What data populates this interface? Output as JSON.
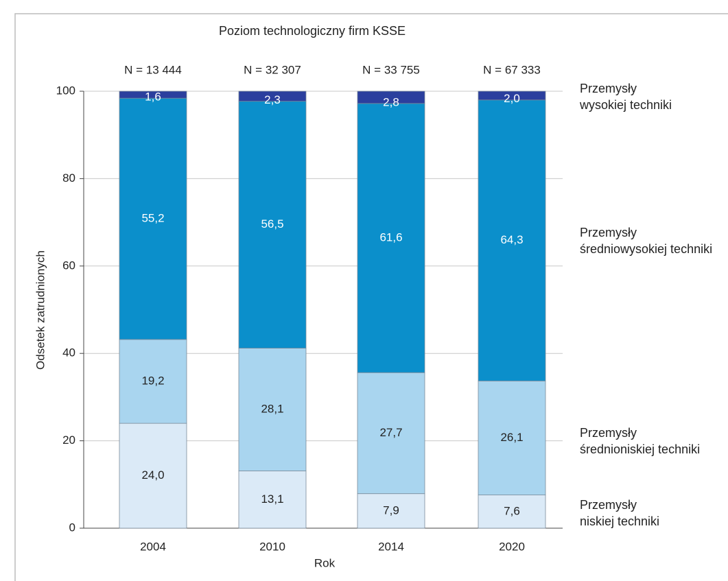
{
  "chart_data": {
    "type": "stacked_bar",
    "title": "Poziom technologiczny firm KSSE",
    "x_label": "Rok",
    "y_label": "Odsetek zatrudnionych",
    "categories": [
      "2004",
      "2010",
      "2014",
      "2020"
    ],
    "annotations": [
      "N = 13 444",
      "N = 32 307",
      "N = 33 755",
      "N = 67 333"
    ],
    "ylim": [
      0,
      100
    ],
    "yticks": [
      0,
      20,
      40,
      60,
      80,
      100
    ],
    "grid": true,
    "legend": "right",
    "series": [
      {
        "name": "Przemysły niskiej techniki",
        "color": "#dbeaf7",
        "label_color": "#222222",
        "values": [
          24.0,
          13.1,
          7.9,
          7.6
        ],
        "value_labels": [
          "24,0",
          "13,1",
          "7,9",
          "7,6"
        ]
      },
      {
        "name": "Przemysły średnioniskiej techniki",
        "color": "#a9d5ef",
        "label_color": "#222222",
        "values": [
          19.2,
          28.1,
          27.7,
          26.1
        ],
        "value_labels": [
          "19,2",
          "28,1",
          "27,7",
          "26,1"
        ]
      },
      {
        "name": "Przemysły średniowysokiej techniki",
        "color": "#0b8fcb",
        "label_color": "#ffffff",
        "values": [
          55.2,
          56.5,
          61.6,
          64.3
        ],
        "value_labels": [
          "55,2",
          "56,5",
          "61,6",
          "64,3"
        ]
      },
      {
        "name": "Przemysły wysokiej techniki",
        "color": "#2b3f9e",
        "label_color": "#ffffff",
        "values": [
          1.6,
          2.3,
          2.8,
          2.0
        ],
        "value_labels": [
          "1,6",
          "2,3",
          "2,8",
          "2,0"
        ]
      }
    ]
  }
}
